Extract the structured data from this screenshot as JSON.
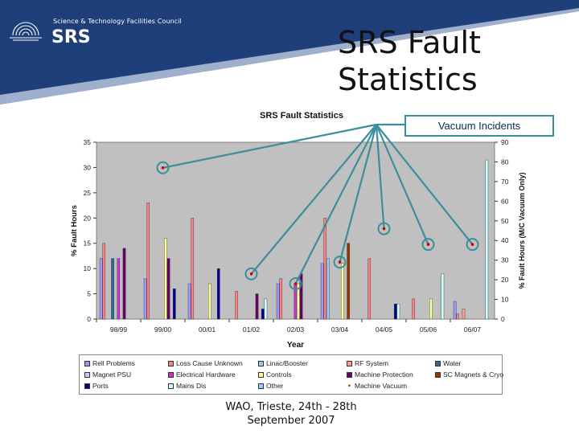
{
  "slide": {
    "title": "SRS Fault Statistics",
    "logo": {
      "council": "Science & Technology Facilities Council",
      "name": "SRS"
    },
    "callout": "Vacuum Incidents",
    "footer": {
      "line1": "WAO, Trieste, 24th - 28th",
      "line2": "September 2007"
    },
    "colors": {
      "header_blue": "#1f3f7a",
      "callout_border": "#3b8f9a",
      "plot_bg": "#c0c0c0"
    }
  },
  "chart_data": {
    "type": "bar",
    "title": "SRS Fault Statistics",
    "xlabel": "Year",
    "ylabel": "% Fault Hours",
    "y2label": "% Fault Hours (M/C Vacuum Only)",
    "categories": [
      "98/99",
      "99/00",
      "00/01",
      "01/02",
      "02/03",
      "03/04",
      "04/05",
      "05/06",
      "06/07"
    ],
    "ylim": [
      0,
      35
    ],
    "yticks": [
      0,
      5,
      10,
      15,
      20,
      25,
      30,
      35
    ],
    "y2lim": [
      0,
      90
    ],
    "y2ticks": [
      0,
      10,
      20,
      30,
      40,
      50,
      60,
      70,
      80,
      90
    ],
    "grid": false,
    "legend_position": "bottom",
    "series": [
      {
        "name": "Rell Problems",
        "color": "#9999ff",
        "values": [
          12,
          8,
          7,
          0,
          7,
          11,
          0,
          0,
          3.5
        ]
      },
      {
        "name": "Loss Cause Unknown",
        "color": "#ff8080",
        "values": [
          15,
          23,
          20,
          5.5,
          8,
          20,
          12,
          4,
          1
        ]
      },
      {
        "name": "Linac/Booster",
        "color": "#99ccff",
        "values": [
          0,
          0,
          0,
          0,
          0,
          12,
          0,
          0,
          0
        ]
      },
      {
        "name": "RF System",
        "color": "#ff9999",
        "values": [
          0,
          0,
          0,
          0,
          0,
          0,
          0,
          0,
          2
        ]
      },
      {
        "name": "Water",
        "color": "#336699",
        "values": [
          12,
          0,
          0,
          0,
          0,
          0,
          0,
          0,
          0
        ]
      },
      {
        "name": "Magnet PSU",
        "color": "#ccccff",
        "values": [
          0,
          0,
          0,
          0,
          0,
          0,
          0,
          0,
          0
        ]
      },
      {
        "name": "Electrical Hardware",
        "color": "#cc33cc",
        "values": [
          12,
          0,
          0,
          0,
          7,
          0,
          0,
          0,
          0
        ]
      },
      {
        "name": "Controls",
        "color": "#ffff99",
        "values": [
          0,
          16,
          7,
          0,
          7,
          11,
          0,
          4,
          0
        ]
      },
      {
        "name": "Machine Protection",
        "color": "#660066",
        "values": [
          14,
          12,
          0,
          5,
          9,
          0,
          0,
          0,
          0
        ]
      },
      {
        "name": "SC Magnets & Cryo",
        "color": "#993300",
        "values": [
          0,
          0,
          0,
          0,
          0,
          15,
          0,
          0,
          0
        ]
      },
      {
        "name": "Ports",
        "color": "#000099",
        "values": [
          0,
          6,
          10,
          2,
          0,
          0,
          3,
          0,
          0
        ]
      },
      {
        "name": "Mains Dis",
        "color": "#ccffff",
        "values": [
          0,
          0,
          0,
          4,
          0,
          0,
          3,
          9,
          31.5
        ]
      },
      {
        "name": "Other",
        "color": "#99ccff",
        "values": [
          0,
          0,
          0,
          0,
          0,
          0,
          0,
          0,
          0
        ]
      },
      {
        "name": "Machine Vacuum",
        "color": "#cc0000",
        "type": "marker",
        "axis": "right",
        "values": [
          null,
          77,
          null,
          23,
          18,
          29,
          46,
          38,
          38
        ]
      }
    ]
  }
}
